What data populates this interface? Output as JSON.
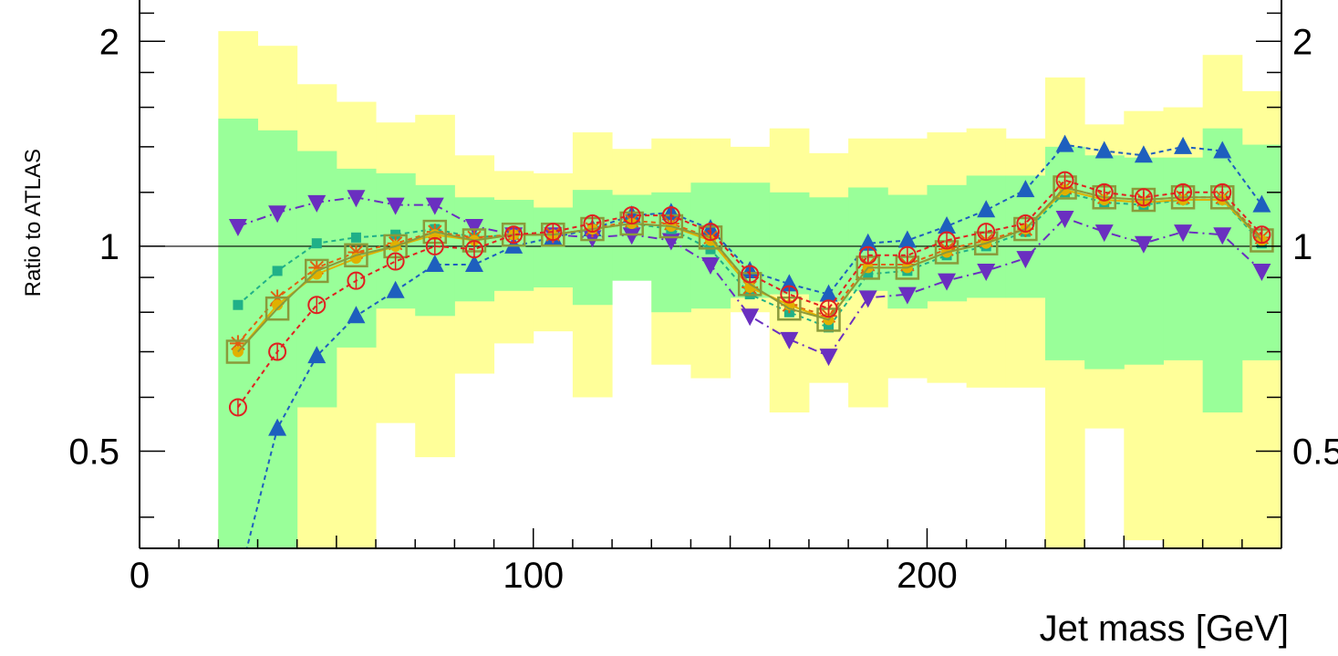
{
  "chart_data": {
    "type": "line",
    "xlabel": "Jet mass [GeV]",
    "ylabel": "Ratio to ATLAS",
    "xlim": [
      0,
      290
    ],
    "ylim": [
      0.36,
      2.3
    ],
    "y_scale": "log",
    "x_tick_labels": [
      "0",
      "100",
      "200"
    ],
    "x_tick_values": [
      0,
      100,
      200
    ],
    "y_tick_labels": [
      "0.5",
      "1",
      "2"
    ],
    "y_tick_values": [
      0.5,
      1,
      2
    ],
    "reference_line": 1,
    "x": [
      25,
      35,
      45,
      55,
      65,
      75,
      85,
      95,
      105,
      115,
      125,
      135,
      145,
      155,
      165,
      175,
      185,
      195,
      205,
      215,
      225,
      235,
      245,
      255,
      265,
      275,
      285
    ],
    "bands": [
      {
        "color": "#ffff99",
        "edges": [
          20,
          30,
          40,
          50,
          60,
          70,
          80,
          90,
          100,
          110,
          120,
          130,
          140,
          150,
          160,
          170,
          180,
          190,
          200,
          210,
          220,
          230,
          240,
          250,
          260,
          270,
          280,
          290
        ],
        "lo": [
          0.33,
          0.33,
          0.33,
          0.33,
          0.55,
          0.49,
          0.65,
          0.72,
          0.75,
          0.6,
          0.9,
          0.67,
          0.64,
          0.8,
          0.57,
          0.63,
          0.58,
          0.64,
          0.63,
          0.62,
          0.62,
          0.33,
          0.54,
          0.37,
          0.36,
          0.36,
          0.33
        ],
        "hi": [
          2.07,
          1.97,
          1.73,
          1.63,
          1.52,
          1.56,
          1.36,
          1.29,
          1.28,
          1.47,
          1.39,
          1.44,
          1.44,
          1.4,
          1.49,
          1.37,
          1.44,
          1.44,
          1.47,
          1.49,
          1.44,
          1.77,
          1.51,
          1.58,
          1.6,
          1.91,
          1.69
        ]
      },
      {
        "color": "#99ff99",
        "edges": [
          20,
          30,
          40,
          50,
          60,
          70,
          80,
          90,
          100,
          110,
          120,
          130,
          140,
          150,
          160,
          170,
          180,
          190,
          200,
          210,
          220,
          230,
          240,
          250,
          260,
          270,
          280,
          290
        ],
        "lo": [
          0.33,
          0.33,
          0.58,
          0.71,
          0.81,
          0.79,
          0.83,
          0.86,
          0.87,
          0.82,
          0.89,
          0.8,
          0.81,
          0.84,
          0.85,
          0.83,
          0.86,
          0.81,
          0.83,
          0.84,
          0.84,
          0.68,
          0.66,
          0.67,
          0.68,
          0.57,
          0.68
        ],
        "hi": [
          1.54,
          1.48,
          1.38,
          1.3,
          1.28,
          1.23,
          1.18,
          1.17,
          1.14,
          1.21,
          1.19,
          1.2,
          1.24,
          1.24,
          1.2,
          1.18,
          1.22,
          1.19,
          1.23,
          1.27,
          1.27,
          1.4,
          1.36,
          1.35,
          1.35,
          1.49,
          1.41
        ]
      }
    ],
    "series": [
      {
        "color": "#1e5fbe",
        "marker": "triangle-up",
        "dash": "5,4",
        "values": [
          0.32,
          0.54,
          0.69,
          0.79,
          0.86,
          0.94,
          0.94,
          1.0,
          1.03,
          1.06,
          1.11,
          1.12,
          1.06,
          0.92,
          0.88,
          0.85,
          1.01,
          1.02,
          1.07,
          1.13,
          1.21,
          1.41,
          1.38,
          1.36,
          1.4,
          1.38,
          1.15
        ]
      },
      {
        "color": "#6a2fc0",
        "marker": "triangle-down",
        "dash": "10,5,2,5",
        "values": [
          1.07,
          1.12,
          1.16,
          1.18,
          1.15,
          1.15,
          1.07,
          1.04,
          1.04,
          1.03,
          1.04,
          1.02,
          0.94,
          0.79,
          0.73,
          0.69,
          0.84,
          0.85,
          0.89,
          0.92,
          0.96,
          1.1,
          1.05,
          1.01,
          1.05,
          1.04,
          0.92
        ]
      },
      {
        "color": "#20b088",
        "marker": "square-small",
        "dash": "5,4",
        "values": [
          0.82,
          0.92,
          1.01,
          1.03,
          1.04,
          1.06,
          1.03,
          1.04,
          1.04,
          1.06,
          1.08,
          1.06,
          0.99,
          0.85,
          0.8,
          0.76,
          0.91,
          0.92,
          0.97,
          1.0,
          1.05,
          1.2,
          1.16,
          1.15,
          1.17,
          1.17,
          1.01
        ]
      },
      {
        "color": "#e06010",
        "marker": "star",
        "dash": "5,4",
        "values": [
          0.72,
          0.84,
          0.93,
          0.98,
          1.01,
          1.05,
          1.03,
          1.04,
          1.04,
          1.06,
          1.09,
          1.08,
          1.03,
          0.87,
          0.82,
          0.79,
          0.94,
          0.94,
          0.99,
          1.02,
          1.06,
          1.22,
          1.18,
          1.17,
          1.18,
          1.18,
          1.03
        ]
      },
      {
        "color": "#e0b000",
        "marker": "circle",
        "dash": "",
        "values": [
          0.7,
          0.82,
          0.91,
          0.96,
          1.0,
          1.04,
          1.02,
          1.04,
          1.04,
          1.06,
          1.08,
          1.07,
          1.02,
          0.87,
          0.82,
          0.78,
          0.93,
          0.93,
          0.98,
          1.01,
          1.06,
          1.21,
          1.17,
          1.16,
          1.17,
          1.17,
          1.02
        ]
      },
      {
        "color": "#8a9a3a",
        "marker": "square-open",
        "dash": "",
        "values": [
          0.7,
          0.81,
          0.92,
          0.97,
          1.0,
          1.05,
          1.02,
          1.04,
          1.04,
          1.06,
          1.08,
          1.07,
          1.03,
          0.88,
          0.81,
          0.78,
          0.93,
          0.93,
          0.98,
          1.01,
          1.06,
          1.22,
          1.18,
          1.17,
          1.18,
          1.18,
          1.02
        ]
      },
      {
        "color": "#e02020",
        "marker": "circle-open",
        "dash": "5,4",
        "values": [
          0.58,
          0.7,
          0.82,
          0.89,
          0.95,
          1.0,
          0.99,
          1.04,
          1.05,
          1.08,
          1.11,
          1.11,
          1.05,
          0.91,
          0.85,
          0.81,
          0.97,
          0.97,
          1.02,
          1.05,
          1.08,
          1.25,
          1.2,
          1.18,
          1.2,
          1.2,
          1.04
        ]
      }
    ]
  }
}
